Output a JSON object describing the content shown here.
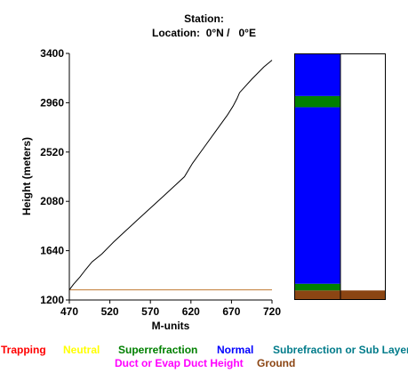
{
  "header": {
    "station_label": "Station:",
    "location_label": "Location:",
    "location_value": "0°N /   0°E"
  },
  "chart_data": {
    "type": "line",
    "xlabel": "M-units",
    "ylabel": "Height (meters)",
    "xlim": [
      470,
      720
    ],
    "ylim": [
      1200,
      3400
    ],
    "xticks": [
      470,
      520,
      570,
      620,
      670,
      720
    ],
    "yticks": [
      1200,
      1640,
      2080,
      2520,
      2960,
      3400
    ],
    "series": [
      {
        "color": "#000000",
        "points": [
          [
            470,
            1290
          ],
          [
            475,
            1340
          ],
          [
            483,
            1405
          ],
          [
            490,
            1470
          ],
          [
            498,
            1540
          ],
          [
            510,
            1610
          ],
          [
            525,
            1720
          ],
          [
            540,
            1820
          ],
          [
            555,
            1920
          ],
          [
            570,
            2020
          ],
          [
            585,
            2120
          ],
          [
            600,
            2220
          ],
          [
            612,
            2300
          ],
          [
            622,
            2420
          ],
          [
            635,
            2550
          ],
          [
            650,
            2700
          ],
          [
            665,
            2850
          ],
          [
            672,
            2930
          ],
          [
            677,
            3000
          ],
          [
            680,
            3050
          ],
          [
            695,
            3170
          ],
          [
            710,
            3280
          ],
          [
            720,
            3340
          ]
        ]
      }
    ],
    "ground_line": {
      "height": 1290,
      "color": "#c07830"
    },
    "profile_bar": {
      "ymin": 1200,
      "ymax": 3400,
      "left_column": [
        {
          "category": "Ground",
          "from": 1200,
          "to": 1285,
          "color": "#8b4513"
        },
        {
          "category": "Superrefraction",
          "from": 1285,
          "to": 1345,
          "color": "#008000"
        },
        {
          "category": "Normal",
          "from": 1345,
          "to": 2920,
          "color": "#0000ff"
        },
        {
          "category": "Superrefraction",
          "from": 2920,
          "to": 3020,
          "color": "#008000"
        },
        {
          "category": "Normal",
          "from": 3020,
          "to": 3400,
          "color": "#0000ff"
        }
      ],
      "right_column": [
        {
          "category": "Ground",
          "from": 1200,
          "to": 1285,
          "color": "#8b4513"
        }
      ]
    }
  },
  "legend": {
    "row1": [
      {
        "label": "Trapping",
        "color": "#ff0000"
      },
      {
        "label": "Neutral",
        "color": "#ffff00"
      },
      {
        "label": "Superrefraction",
        "color": "#008000"
      },
      {
        "label": "Normal",
        "color": "#0000ff"
      },
      {
        "label": "Subrefraction or Sub Layer",
        "color": "#007b8a"
      }
    ],
    "row2": [
      {
        "label": "Duct or Evap Duct Height",
        "color": "#ff00ff"
      },
      {
        "label": "Ground",
        "color": "#8b4513"
      }
    ]
  }
}
